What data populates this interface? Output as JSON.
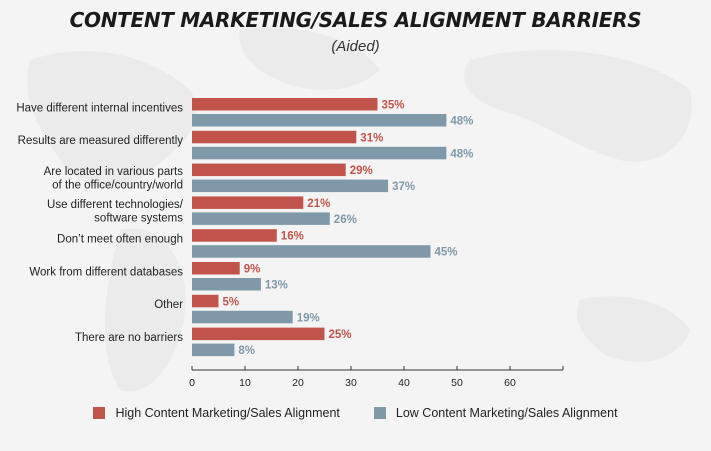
{
  "header": {
    "title": "CONTENT MARKETING/SALES ALIGNMENT BARRIERS",
    "subtitle": "(Aided)"
  },
  "colors": {
    "high": "#c0544b",
    "low": "#7f99a8"
  },
  "chart_data": {
    "type": "bar",
    "orientation": "horizontal",
    "title": "CONTENT MARKETING/SALES ALIGNMENT BARRIERS",
    "subtitle": "(Aided)",
    "categories": [
      [
        "Have different internal incentives"
      ],
      [
        "Results are measured differently"
      ],
      [
        "Are located in various parts",
        "of the office/country/world"
      ],
      [
        "Use different technologies/",
        "software systems"
      ],
      [
        "Don’t meet often enough"
      ],
      [
        "Work from different databases"
      ],
      [
        "Other"
      ],
      [
        "There are no barriers"
      ]
    ],
    "series": [
      {
        "name": "High Content Marketing/Sales Alignment",
        "values": [
          35,
          31,
          29,
          21,
          16,
          9,
          5,
          25
        ],
        "labels": [
          "35%",
          "31%",
          "29%",
          "21%",
          "16%",
          "9%",
          "5%",
          "25%"
        ]
      },
      {
        "name": "Low Content Marketing/Sales Alignment",
        "values": [
          48,
          48,
          37,
          26,
          45,
          13,
          19,
          8
        ],
        "labels": [
          "48%",
          "48%",
          "37%",
          "26%",
          "45%",
          "13%",
          "19%",
          "8%"
        ]
      }
    ],
    "xlim": [
      0,
      70
    ],
    "xticks": [
      "0",
      "10",
      "20",
      "30",
      "40",
      "50",
      "60"
    ],
    "xlabel": "",
    "ylabel": "",
    "legend": "bottom",
    "grid": false
  }
}
